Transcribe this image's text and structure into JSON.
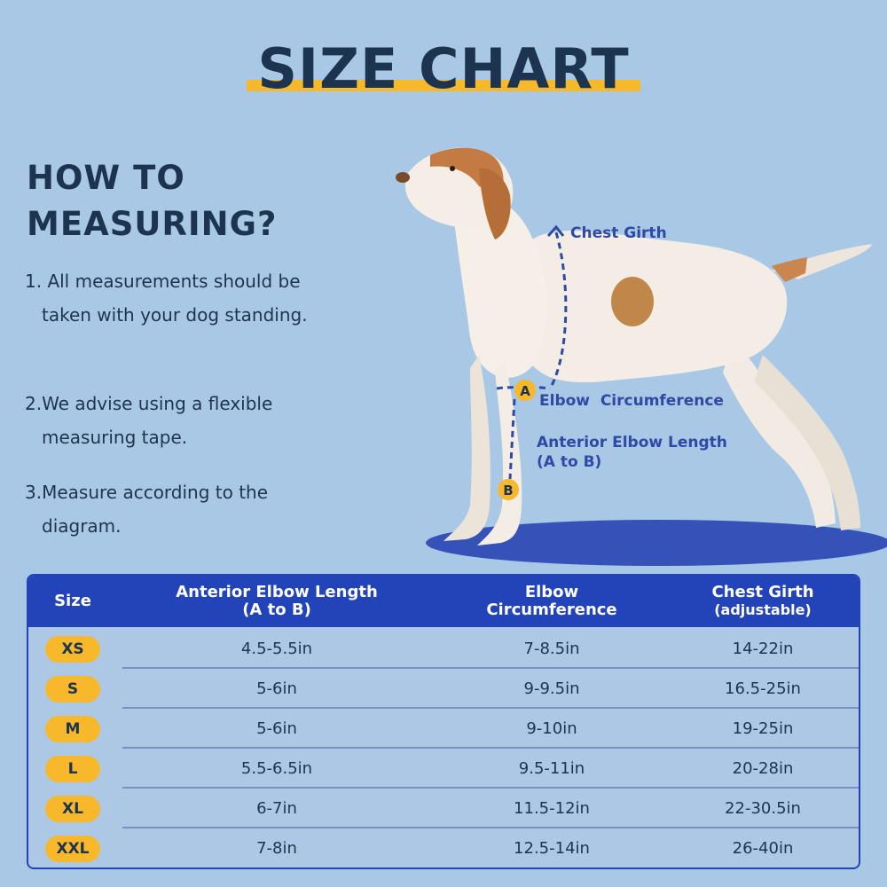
{
  "title": "SIZE CHART",
  "howto": {
    "line1": "HOW TO",
    "line2": "MEASURING?"
  },
  "steps": [
    "1. All measurements should be taken with your dog standing.",
    "2.We advise using a flexible measuring tape.",
    "3.Measure according to the diagram."
  ],
  "diagram": {
    "chest_girth": "Chest Girth",
    "elbow_circ": "Elbow  Circumference",
    "anterior_line1": "Anterior Elbow Length",
    "anterior_line2": "(A to B)",
    "point_a": "A",
    "point_b": "B"
  },
  "colors": {
    "background": "#a9c8e6",
    "header": "#2344b8",
    "accent": "#f7b82b",
    "ink": "#1d3450"
  },
  "table": {
    "headers": {
      "size": "Size",
      "anterior": "Anterior Elbow Length",
      "anterior_sub": "(A to B)",
      "elbow": "Elbow",
      "elbow_sub": "Circumference",
      "chest": "Chest Girth",
      "chest_sub": "(adjustable)"
    },
    "rows": [
      {
        "size": "XS",
        "anterior": "4.5-5.5in",
        "elbow": "7-8.5in",
        "chest": "14-22in"
      },
      {
        "size": "S",
        "anterior": "5-6in",
        "elbow": "9-9.5in",
        "chest": "16.5-25in"
      },
      {
        "size": "M",
        "anterior": "5-6in",
        "elbow": "9-10in",
        "chest": "19-25in"
      },
      {
        "size": "L",
        "anterior": "5.5-6.5in",
        "elbow": "9.5-11in",
        "chest": "20-28in"
      },
      {
        "size": "XL",
        "anterior": "6-7in",
        "elbow": "11.5-12in",
        "chest": "22-30.5in"
      },
      {
        "size": "XXL",
        "anterior": "7-8in",
        "elbow": "12.5-14in",
        "chest": "26-40in"
      }
    ]
  }
}
